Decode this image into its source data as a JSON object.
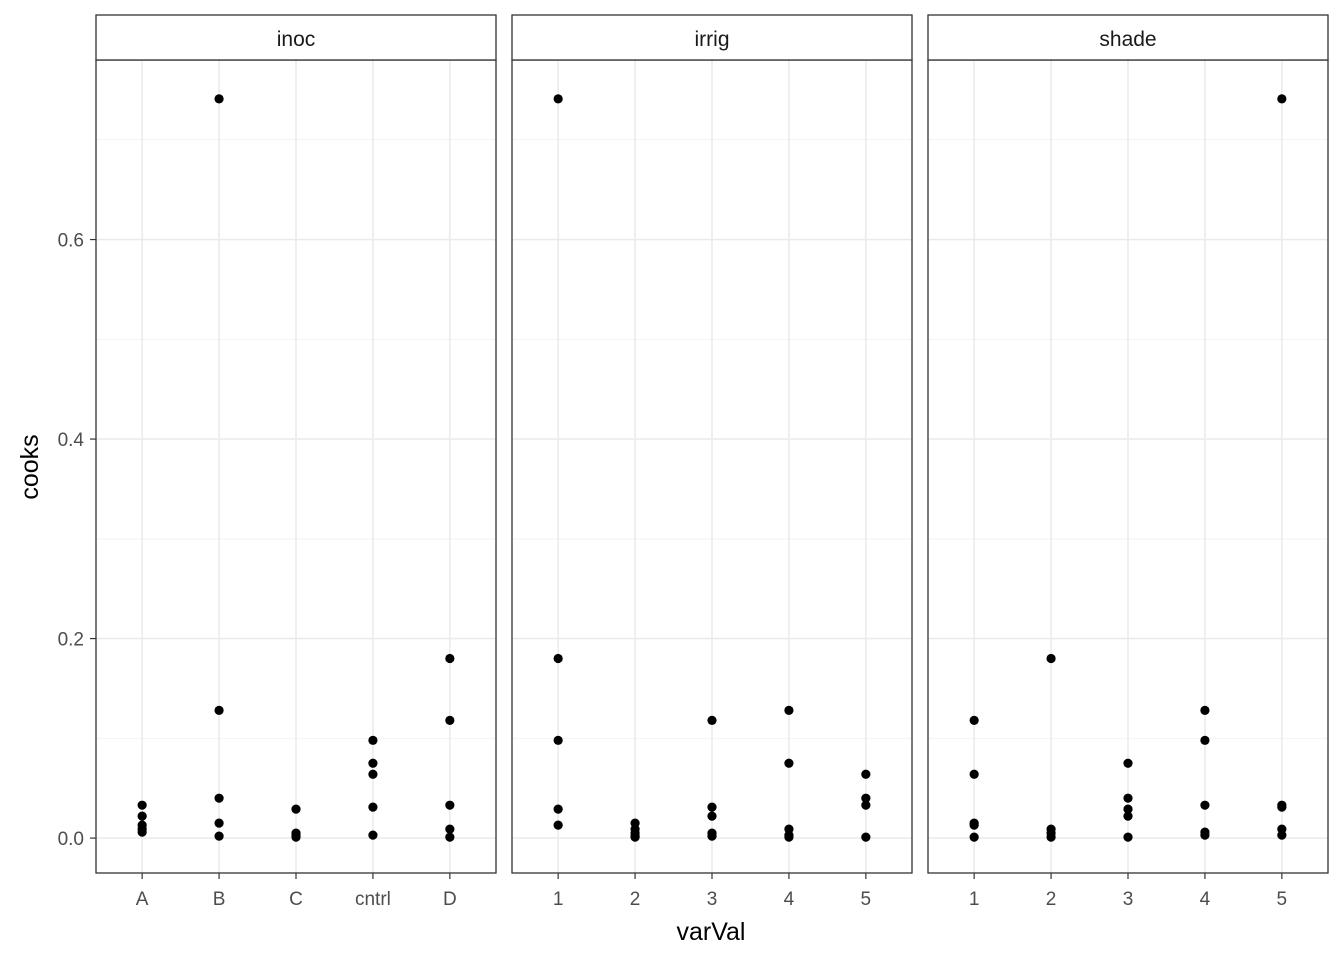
{
  "chart_data": {
    "type": "scatter",
    "xlabel": "varVal",
    "ylabel": "cooks",
    "ylim": [
      -0.035,
      0.78
    ],
    "yticks": [
      0.0,
      0.2,
      0.4,
      0.6
    ],
    "ytick_labels": [
      "0.0",
      "0.2",
      "0.4",
      "0.6"
    ],
    "grid": true,
    "facets": [
      {
        "name": "inoc",
        "categories": [
          "A",
          "B",
          "C",
          "cntrl",
          "D"
        ],
        "points": [
          {
            "x": "A",
            "y": 0.033
          },
          {
            "x": "A",
            "y": 0.022
          },
          {
            "x": "A",
            "y": 0.013
          },
          {
            "x": "A",
            "y": 0.009
          },
          {
            "x": "A",
            "y": 0.006
          },
          {
            "x": "B",
            "y": 0.741
          },
          {
            "x": "B",
            "y": 0.128
          },
          {
            "x": "B",
            "y": 0.04
          },
          {
            "x": "B",
            "y": 0.015
          },
          {
            "x": "B",
            "y": 0.002
          },
          {
            "x": "C",
            "y": 0.029
          },
          {
            "x": "C",
            "y": 0.005
          },
          {
            "x": "C",
            "y": 0.003
          },
          {
            "x": "C",
            "y": 0.001
          },
          {
            "x": "cntrl",
            "y": 0.098
          },
          {
            "x": "cntrl",
            "y": 0.075
          },
          {
            "x": "cntrl",
            "y": 0.064
          },
          {
            "x": "cntrl",
            "y": 0.031
          },
          {
            "x": "cntrl",
            "y": 0.003
          },
          {
            "x": "D",
            "y": 0.18
          },
          {
            "x": "D",
            "y": 0.118
          },
          {
            "x": "D",
            "y": 0.033
          },
          {
            "x": "D",
            "y": 0.009
          },
          {
            "x": "D",
            "y": 0.001
          }
        ]
      },
      {
        "name": "irrig",
        "categories": [
          "1",
          "2",
          "3",
          "4",
          "5"
        ],
        "points": [
          {
            "x": "1",
            "y": 0.741
          },
          {
            "x": "1",
            "y": 0.18
          },
          {
            "x": "1",
            "y": 0.098
          },
          {
            "x": "1",
            "y": 0.029
          },
          {
            "x": "1",
            "y": 0.013
          },
          {
            "x": "2",
            "y": 0.015
          },
          {
            "x": "2",
            "y": 0.009
          },
          {
            "x": "2",
            "y": 0.005
          },
          {
            "x": "2",
            "y": 0.002
          },
          {
            "x": "2",
            "y": 0.001
          },
          {
            "x": "3",
            "y": 0.118
          },
          {
            "x": "3",
            "y": 0.031
          },
          {
            "x": "3",
            "y": 0.022
          },
          {
            "x": "3",
            "y": 0.005
          },
          {
            "x": "3",
            "y": 0.002
          },
          {
            "x": "4",
            "y": 0.128
          },
          {
            "x": "4",
            "y": 0.075
          },
          {
            "x": "4",
            "y": 0.009
          },
          {
            "x": "4",
            "y": 0.003
          },
          {
            "x": "4",
            "y": 0.001
          },
          {
            "x": "5",
            "y": 0.064
          },
          {
            "x": "5",
            "y": 0.04
          },
          {
            "x": "5",
            "y": 0.033
          },
          {
            "x": "5",
            "y": 0.001
          }
        ]
      },
      {
        "name": "shade",
        "categories": [
          "1",
          "2",
          "3",
          "4",
          "5"
        ],
        "points": [
          {
            "x": "1",
            "y": 0.118
          },
          {
            "x": "1",
            "y": 0.064
          },
          {
            "x": "1",
            "y": 0.015
          },
          {
            "x": "1",
            "y": 0.013
          },
          {
            "x": "1",
            "y": 0.001
          },
          {
            "x": "2",
            "y": 0.18
          },
          {
            "x": "2",
            "y": 0.009
          },
          {
            "x": "2",
            "y": 0.005
          },
          {
            "x": "2",
            "y": 0.001
          },
          {
            "x": "3",
            "y": 0.075
          },
          {
            "x": "3",
            "y": 0.04
          },
          {
            "x": "3",
            "y": 0.029
          },
          {
            "x": "3",
            "y": 0.022
          },
          {
            "x": "3",
            "y": 0.001
          },
          {
            "x": "4",
            "y": 0.128
          },
          {
            "x": "4",
            "y": 0.098
          },
          {
            "x": "4",
            "y": 0.033
          },
          {
            "x": "4",
            "y": 0.006
          },
          {
            "x": "4",
            "y": 0.003
          },
          {
            "x": "5",
            "y": 0.741
          },
          {
            "x": "5",
            "y": 0.033
          },
          {
            "x": "5",
            "y": 0.031
          },
          {
            "x": "5",
            "y": 0.009
          },
          {
            "x": "5",
            "y": 0.003
          }
        ]
      }
    ]
  }
}
